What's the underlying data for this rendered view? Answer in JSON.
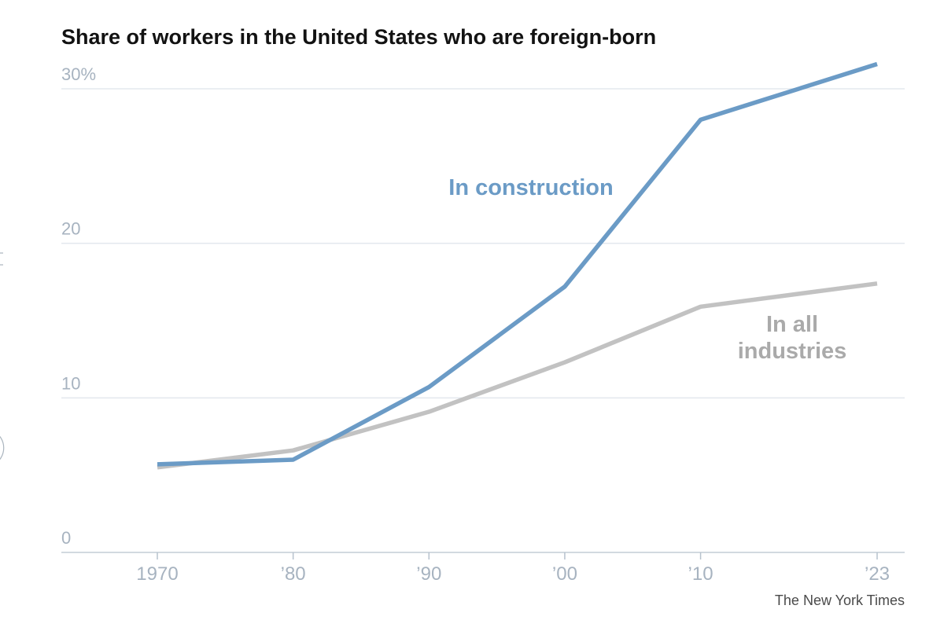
{
  "chart_data": {
    "type": "line",
    "title": "Share of workers in the United States who are foreign-born",
    "xlabel": "",
    "ylabel": "",
    "x": [
      1970,
      1980,
      1990,
      2000,
      2010,
      2023
    ],
    "x_tick_labels": [
      "1970",
      "’80",
      "’90",
      "’00",
      "’10",
      "’23"
    ],
    "y_ticks": [
      0,
      10,
      20,
      30
    ],
    "y_tick_labels": [
      "0",
      "10",
      "20",
      "30%"
    ],
    "ylim": [
      0,
      30
    ],
    "grid": true,
    "legend": "inline labels",
    "series": [
      {
        "name": "In construction",
        "label_lines": [
          "In construction"
        ],
        "color": "#6b9bc6",
        "values": [
          5.7,
          6.0,
          10.7,
          17.2,
          28.0,
          31.6
        ]
      },
      {
        "name": "In all industries",
        "label_lines": [
          "In all",
          "industries"
        ],
        "color": "#c2c2c2",
        "values": [
          5.5,
          6.6,
          9.1,
          12.3,
          15.9,
          17.4
        ]
      }
    ]
  },
  "credit": "The New York Times"
}
